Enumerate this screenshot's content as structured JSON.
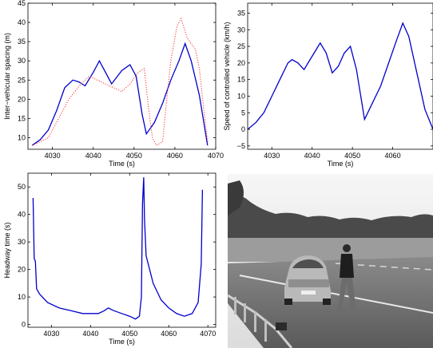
{
  "colors": {
    "primary": "#0000cc",
    "reference": "#ff2a2a",
    "axes": "#000000"
  },
  "chart_data": [
    {
      "type": "line",
      "xlabel": "Time (s)",
      "ylabel": "Inter−vehicular spacing (m)",
      "xlim": [
        4024,
        4070
      ],
      "ylim": [
        7,
        45
      ],
      "xticks": [
        "4030",
        "4040",
        "4050",
        "4060",
        "4070"
      ],
      "yticks": [
        "10",
        "15",
        "20",
        "25",
        "30",
        "35",
        "40",
        "45"
      ],
      "grid": false,
      "series": [
        {
          "style": "solid",
          "color": "#0000cc",
          "points": [
            [
              4025,
              8
            ],
            [
              4027,
              9.5
            ],
            [
              4029,
              12
            ],
            [
              4031,
              17
            ],
            [
              4033,
              23
            ],
            [
              4035,
              25
            ],
            [
              4036.5,
              24.5
            ],
            [
              4038,
              23.5
            ],
            [
              4040,
              27
            ],
            [
              4041.5,
              30
            ],
            [
              4043,
              27
            ],
            [
              4044.5,
              24
            ],
            [
              4047,
              27.5
            ],
            [
              4049,
              29
            ],
            [
              4050.5,
              26
            ],
            [
              4052,
              16
            ],
            [
              4053,
              11
            ],
            [
              4055,
              14
            ],
            [
              4057,
              19
            ],
            [
              4059,
              25
            ],
            [
              4061,
              30
            ],
            [
              4062.5,
              34.5
            ],
            [
              4064,
              30
            ],
            [
              4066,
              21
            ],
            [
              4068,
              8
            ]
          ]
        },
        {
          "style": "dotted",
          "color": "#ff2a2a",
          "points": [
            [
              4025,
              8
            ],
            [
              4029,
              10
            ],
            [
              4031,
              14
            ],
            [
              4034,
              20
            ],
            [
              4037,
              24
            ],
            [
              4039,
              26
            ],
            [
              4041,
              25
            ],
            [
              4043,
              24
            ],
            [
              4045,
              23
            ],
            [
              4047,
              22
            ],
            [
              4049,
              24
            ],
            [
              4051,
              27
            ],
            [
              4052.5,
              28
            ],
            [
              4053.5,
              18
            ],
            [
              4054.5,
              10
            ],
            [
              4055.5,
              8
            ],
            [
              4057,
              9
            ],
            [
              4058,
              20
            ],
            [
              4059,
              30
            ],
            [
              4060.5,
              39
            ],
            [
              4061.5,
              41
            ],
            [
              4063,
              36
            ],
            [
              4065,
              33
            ],
            [
              4066,
              28
            ],
            [
              4067,
              18
            ],
            [
              4068,
              9
            ]
          ]
        }
      ]
    },
    {
      "type": "line",
      "xlabel": "Time (s)",
      "ylabel": "Speed of controlled vehicle (km/h)",
      "xlim": [
        4024,
        4070
      ],
      "ylim": [
        -6,
        38
      ],
      "xticks": [
        "4030",
        "4040",
        "4050",
        "4060"
      ],
      "yticks": [
        "−5",
        "0",
        "5",
        "10",
        "15",
        "20",
        "25",
        "30",
        "35"
      ],
      "grid": false,
      "series": [
        {
          "style": "solid",
          "color": "#0000cc",
          "points": [
            [
              4024,
              0
            ],
            [
              4026,
              2
            ],
            [
              4028,
              5
            ],
            [
              4030,
              10
            ],
            [
              4032,
              15
            ],
            [
              4034,
              20
            ],
            [
              4035,
              21
            ],
            [
              4036.5,
              20
            ],
            [
              4038,
              18
            ],
            [
              4040,
              22
            ],
            [
              4042,
              26
            ],
            [
              4043.5,
              23
            ],
            [
              4045,
              17
            ],
            [
              4046.5,
              19
            ],
            [
              4048,
              23
            ],
            [
              4049.5,
              25
            ],
            [
              4051,
              18
            ],
            [
              4053,
              3
            ],
            [
              4055,
              8
            ],
            [
              4057,
              13
            ],
            [
              4059,
              20
            ],
            [
              4061,
              27
            ],
            [
              4062.5,
              32
            ],
            [
              4064,
              28
            ],
            [
              4066,
              17
            ],
            [
              4068,
              6
            ],
            [
              4070,
              0
            ]
          ]
        }
      ]
    },
    {
      "type": "line",
      "xlabel": "Time (s)",
      "ylabel": "Headway time (s)",
      "xlim": [
        4024,
        4072
      ],
      "ylim": [
        -1,
        55
      ],
      "xticks": [
        "4030",
        "4040",
        "4050",
        "4060",
        "4070"
      ],
      "yticks": [
        "0",
        "10",
        "20",
        "30",
        "40",
        "50"
      ],
      "grid": false,
      "series": [
        {
          "style": "solid",
          "color": "#0000cc",
          "points": [
            [
              4025.3,
              46
            ],
            [
              4025.6,
              24
            ],
            [
              4025.9,
              23
            ],
            [
              4026.2,
              13
            ],
            [
              4027,
              11
            ],
            [
              4029,
              8
            ],
            [
              4032,
              6
            ],
            [
              4035,
              5
            ],
            [
              4038,
              4
            ],
            [
              4040,
              4
            ],
            [
              4042,
              4
            ],
            [
              4043.5,
              5
            ],
            [
              4044.5,
              6
            ],
            [
              4046,
              5
            ],
            [
              4048,
              4
            ],
            [
              4050,
              3
            ],
            [
              4051.5,
              2
            ],
            [
              4052.5,
              3
            ],
            [
              4053,
              10
            ],
            [
              4053.3,
              44
            ],
            [
              4053.6,
              53.5
            ],
            [
              4053.8,
              38
            ],
            [
              4054.2,
              25
            ],
            [
              4056,
              15
            ],
            [
              4058,
              9
            ],
            [
              4060,
              6
            ],
            [
              4062,
              4
            ],
            [
              4064,
              3
            ],
            [
              4066,
              4
            ],
            [
              4067.5,
              8
            ],
            [
              4068.3,
              22
            ],
            [
              4068.6,
              49
            ]
          ]
        }
      ]
    }
  ],
  "photo": {
    "description": "grayscale road scene: car following a walking man on a road"
  }
}
